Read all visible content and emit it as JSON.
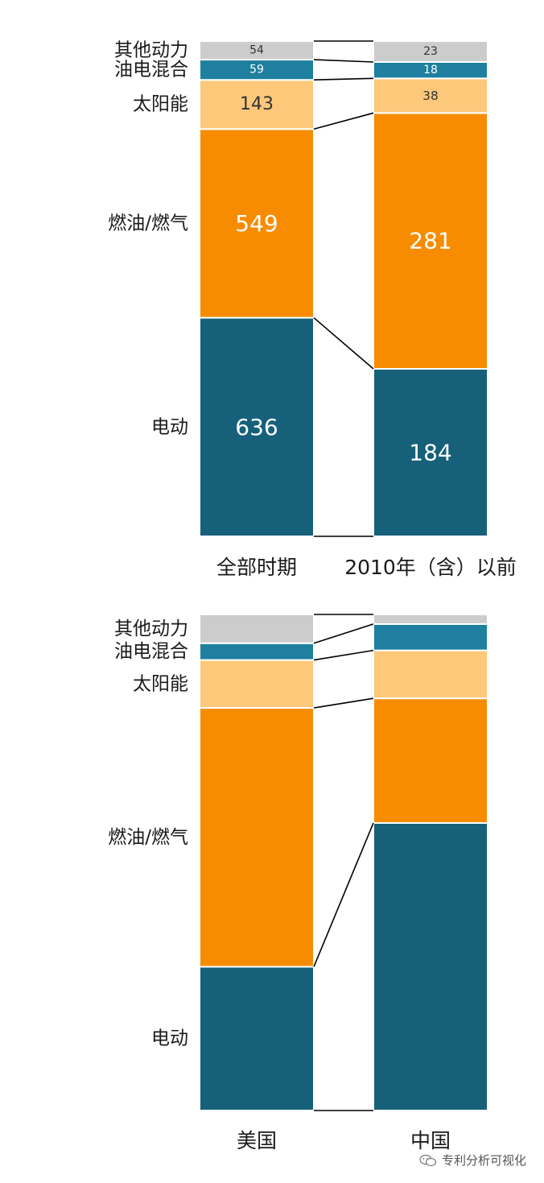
{
  "chart_data": [
    {
      "type": "bar",
      "stacked": true,
      "normalized": true,
      "categories": [
        "全部时期",
        "2010年（含）以前"
      ],
      "series": [
        {
          "name": "电动",
          "values": [
            636,
            184
          ],
          "color": "#17607a",
          "label_color": "#ffffff"
        },
        {
          "name": "燃油/燃气",
          "values": [
            549,
            281
          ],
          "color": "#f78c00",
          "label_color": "#ffffff"
        },
        {
          "name": "太阳能",
          "values": [
            143,
            38
          ],
          "color": "#fdc87a",
          "label_color": "#333333"
        },
        {
          "name": "油电混合",
          "values": [
            59,
            18
          ],
          "color": "#1e7f9e",
          "label_color": "#ffffff"
        },
        {
          "name": "其他动力",
          "values": [
            54,
            23
          ],
          "color": "#cccccc",
          "label_color": "#333333"
        }
      ],
      "show_values": true,
      "legend": "left"
    },
    {
      "type": "bar",
      "stacked": true,
      "normalized": true,
      "categories": [
        "美国",
        "中国"
      ],
      "series": [
        {
          "name": "电动",
          "values": [
            0.3,
            0.6
          ],
          "color": "#17607a"
        },
        {
          "name": "燃油/燃气",
          "values": [
            0.54,
            0.26
          ],
          "color": "#f78c00"
        },
        {
          "name": "太阳能",
          "values": [
            0.1,
            0.1
          ],
          "color": "#fdc87a"
        },
        {
          "name": "油电混合",
          "values": [
            0.035,
            0.055
          ],
          "color": "#1e7f9e"
        },
        {
          "name": "其他动力",
          "values": [
            0.06,
            0.02
          ],
          "color": "#cccccc"
        }
      ],
      "show_values": false,
      "legend": "left"
    }
  ],
  "watermark": {
    "text": "专利分析可视化",
    "icon": "wechat-icon"
  }
}
